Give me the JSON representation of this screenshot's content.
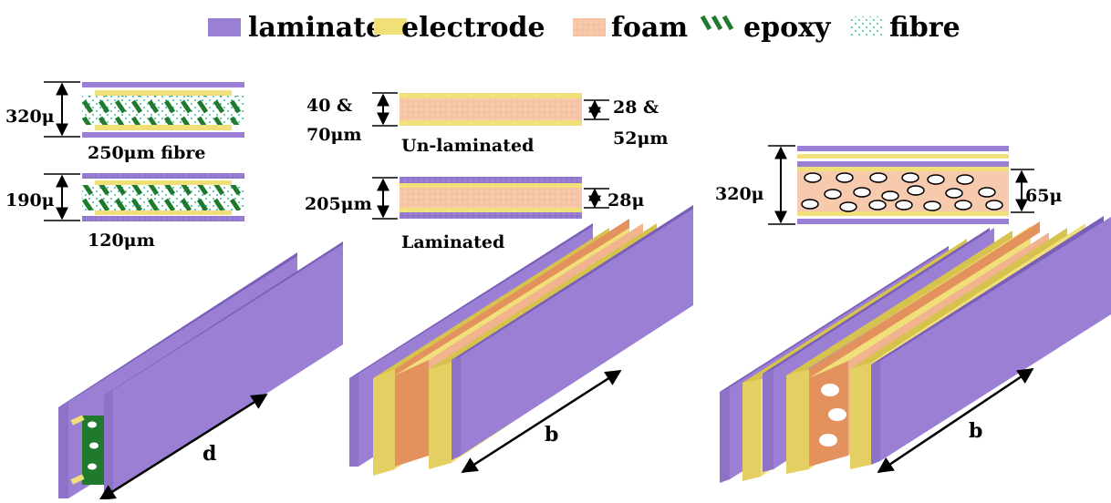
{
  "legend": {
    "laminate": "laminate",
    "electrode": "electrode",
    "foam": "foam",
    "epoxy": "epoxy",
    "fibre": "fibre"
  },
  "colors": {
    "laminate": "#9b7fd4",
    "laminate_dark": "#7a5fb8",
    "electrode": "#f1e07a",
    "electrode_dark": "#d6c34e",
    "foam": "#f7c9ad",
    "foam_dark": "#e3925e",
    "epoxy": "#1f7a2e",
    "fibre": "#9fe3d6"
  },
  "panel_a": {
    "label_320": "320μ",
    "label_250": "250μm fibre",
    "label_190": "190μ",
    "label_120": "120μm",
    "dim_label": "d"
  },
  "panel_b": {
    "label_40": "40 &",
    "label_70": "70μm",
    "label_28_52_a": "28 &",
    "label_28_52_b": "52μm",
    "label_unlaminated": "Un-laminated",
    "label_205": "205μm",
    "label_28": "28μ",
    "label_laminated": "Laminated",
    "dim_label": "b"
  },
  "panel_c": {
    "label_320": "320μ",
    "label_65": "65μ",
    "dim_label": "b"
  }
}
